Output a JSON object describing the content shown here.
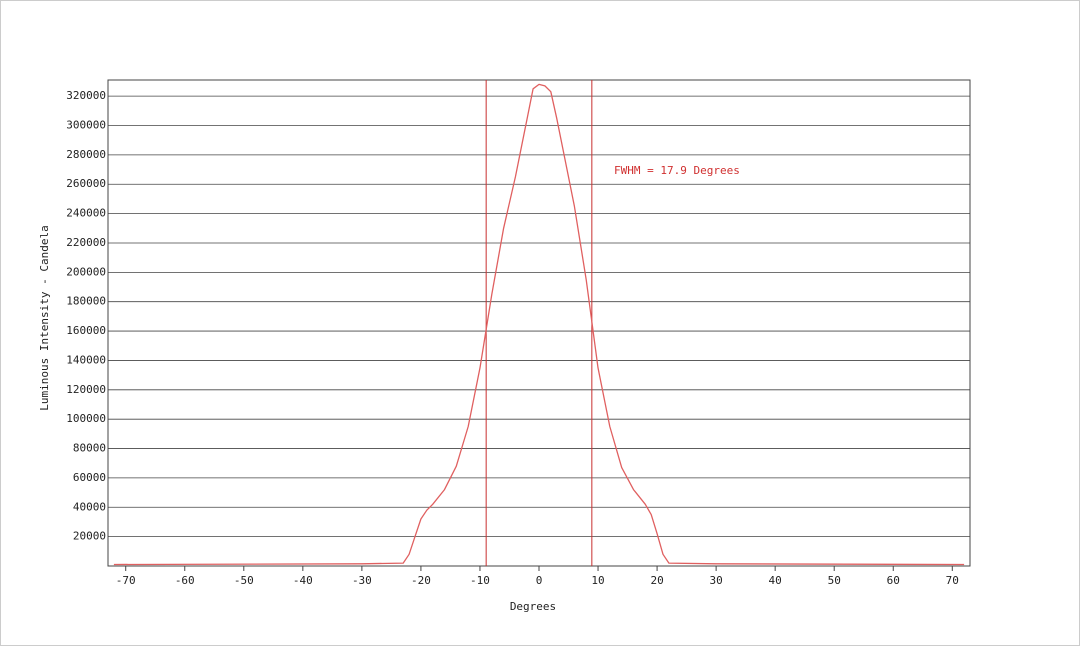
{
  "chart_data": {
    "type": "line",
    "xlabel": "Degrees",
    "ylabel": "Luminous Intensity - Candela",
    "annotation": "FWHM = 17.9 Degrees",
    "x": [
      -72,
      -30,
      -23,
      -22,
      -21,
      -20,
      -19,
      -18,
      -16,
      -14,
      -12,
      -10,
      -9,
      -8,
      -6,
      -4,
      -2,
      -1,
      0,
      1,
      2,
      3,
      4,
      6,
      8,
      9,
      10,
      12,
      14,
      16,
      18,
      19,
      20,
      21,
      22,
      30,
      72
    ],
    "series": [
      {
        "color": "#e06060",
        "values": [
          1000,
          1500,
          2000,
          8000,
          20000,
          32000,
          38000,
          42000,
          52000,
          68000,
          95000,
          135000,
          160000,
          185000,
          230000,
          265000,
          305000,
          325000,
          328000,
          327000,
          323000,
          305000,
          285000,
          245000,
          195000,
          165000,
          135000,
          95000,
          67000,
          52000,
          42000,
          35000,
          22000,
          8000,
          2000,
          1500,
          1000
        ]
      }
    ],
    "vlines": [
      -8.95,
      8.95
    ],
    "vline_color": "#c83030",
    "xlim": [
      -73,
      73
    ],
    "ylim": [
      0,
      331000
    ],
    "xticks": [
      -70,
      -60,
      -50,
      -40,
      -30,
      -20,
      -10,
      0,
      10,
      20,
      30,
      40,
      50,
      60,
      70
    ],
    "yticks": [
      20000,
      40000,
      60000,
      80000,
      100000,
      120000,
      140000,
      160000,
      180000,
      200000,
      220000,
      240000,
      260000,
      280000,
      300000,
      320000
    ],
    "grid": true
  }
}
